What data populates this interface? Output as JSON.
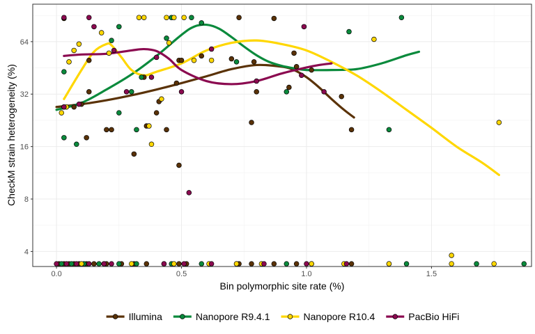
{
  "chart_data": {
    "type": "scatter",
    "xlabel": "Bin polymorphic site rate (%)",
    "ylabel": "CheckM strain heterogeneity (%)",
    "x_scale": "linear",
    "y_scale": "log2",
    "xlim": [
      -0.095,
      1.9
    ],
    "ylim": [
      3.28,
      105
    ],
    "x_ticks": [
      0.0,
      0.5,
      1.0,
      1.5
    ],
    "x_tick_labels": [
      "0.0",
      "0.5",
      "1.0",
      "1.5"
    ],
    "y_ticks": [
      4,
      8,
      16,
      32,
      64
    ],
    "y_tick_labels": [
      "4",
      "8",
      "16",
      "32",
      "64"
    ],
    "grid": true,
    "legend_position": "bottom",
    "series": [
      {
        "name": "Illumina",
        "color": "#5a3207",
        "points": [
          [
            0.03,
            87
          ],
          [
            0.13,
            50
          ],
          [
            0.07,
            27
          ],
          [
            0.03,
            27
          ],
          [
            0.1,
            28
          ],
          [
            0.12,
            18
          ],
          [
            0.13,
            33
          ],
          [
            0.2,
            20
          ],
          [
            0.22,
            20
          ],
          [
            0.31,
            14.5
          ],
          [
            0.35,
            40
          ],
          [
            0.36,
            21
          ],
          [
            0.4,
            25
          ],
          [
            0.41,
            29
          ],
          [
            0.44,
            20
          ],
          [
            0.48,
            37
          ],
          [
            0.49,
            50
          ],
          [
            0.5,
            50
          ],
          [
            0.49,
            12.5
          ],
          [
            0.58,
            53
          ],
          [
            0.7,
            51
          ],
          [
            0.73,
            88
          ],
          [
            0.78,
            22
          ],
          [
            0.79,
            49
          ],
          [
            0.8,
            33
          ],
          [
            0.87,
            87
          ],
          [
            0.93,
            35
          ],
          [
            0.95,
            55
          ],
          [
            0.96,
            46
          ],
          [
            1.02,
            44
          ],
          [
            1.14,
            31
          ],
          [
            1.18,
            20
          ],
          [
            0.01,
            3.4
          ],
          [
            0.03,
            3.4
          ],
          [
            0.05,
            3.4
          ],
          [
            0.07,
            3.4
          ],
          [
            0.09,
            3.4
          ],
          [
            0.12,
            3.4
          ],
          [
            0.15,
            3.4
          ],
          [
            0.2,
            3.4
          ],
          [
            0.26,
            3.4
          ],
          [
            0.31,
            3.4
          ],
          [
            0.36,
            3.4
          ],
          [
            0.43,
            3.4
          ],
          [
            0.49,
            3.4
          ],
          [
            0.52,
            3.4
          ],
          [
            0.73,
            3.4
          ],
          [
            0.78,
            3.4
          ],
          [
            0.87,
            3.4
          ],
          [
            0.96,
            3.4
          ],
          [
            1.18,
            3.4
          ]
        ],
        "trend": [
          [
            0.0,
            27
          ],
          [
            0.1,
            28
          ],
          [
            0.2,
            29.5
          ],
          [
            0.3,
            31.5
          ],
          [
            0.4,
            34
          ],
          [
            0.5,
            37
          ],
          [
            0.6,
            40.5
          ],
          [
            0.7,
            44.5
          ],
          [
            0.8,
            47
          ],
          [
            0.9,
            46
          ],
          [
            0.95,
            44
          ],
          [
            1.0,
            40
          ],
          [
            1.05,
            35
          ],
          [
            1.1,
            30
          ],
          [
            1.15,
            26
          ],
          [
            1.19,
            23.5
          ]
        ]
      },
      {
        "name": "Nanopore R9.4.1",
        "color": "#0a8a3c",
        "points": [
          [
            0.03,
            43
          ],
          [
            0.03,
            18
          ],
          [
            0.08,
            16.5
          ],
          [
            0.22,
            65
          ],
          [
            0.25,
            78
          ],
          [
            0.25,
            25
          ],
          [
            0.3,
            33
          ],
          [
            0.32,
            20
          ],
          [
            0.34,
            40
          ],
          [
            0.44,
            67
          ],
          [
            0.46,
            88
          ],
          [
            0.54,
            88
          ],
          [
            0.58,
            82
          ],
          [
            0.72,
            49
          ],
          [
            0.92,
            33
          ],
          [
            1.17,
            73
          ],
          [
            1.33,
            20
          ],
          [
            1.38,
            88
          ],
          [
            0.02,
            3.4
          ],
          [
            0.06,
            3.4
          ],
          [
            0.11,
            3.4
          ],
          [
            0.17,
            3.4
          ],
          [
            0.25,
            3.4
          ],
          [
            0.32,
            3.4
          ],
          [
            0.46,
            3.4
          ],
          [
            0.58,
            3.4
          ],
          [
            0.72,
            3.4
          ],
          [
            0.92,
            3.4
          ],
          [
            1.02,
            3.4
          ],
          [
            1.33,
            3.4
          ],
          [
            1.4,
            3.4
          ],
          [
            1.68,
            3.4
          ],
          [
            1.87,
            3.4
          ]
        ],
        "trend": [
          [
            0.0,
            26
          ],
          [
            0.1,
            28.5
          ],
          [
            0.2,
            34
          ],
          [
            0.3,
            41.5
          ],
          [
            0.4,
            53
          ],
          [
            0.5,
            70
          ],
          [
            0.55,
            78
          ],
          [
            0.6,
            80
          ],
          [
            0.65,
            76
          ],
          [
            0.7,
            68
          ],
          [
            0.75,
            60
          ],
          [
            0.8,
            53.5
          ],
          [
            0.85,
            49
          ],
          [
            0.9,
            46.5
          ],
          [
            0.95,
            45
          ],
          [
            1.0,
            44
          ],
          [
            1.1,
            44
          ],
          [
            1.2,
            44.5
          ],
          [
            1.3,
            48
          ],
          [
            1.4,
            53.5
          ],
          [
            1.45,
            56
          ]
        ]
      },
      {
        "name": "Nanopore R10.4",
        "color": "#ffd700",
        "points": [
          [
            0.02,
            25
          ],
          [
            0.03,
            27
          ],
          [
            0.04,
            27
          ],
          [
            0.05,
            49
          ],
          [
            0.07,
            57
          ],
          [
            0.09,
            62
          ],
          [
            0.18,
            72
          ],
          [
            0.21,
            55
          ],
          [
            0.33,
            88
          ],
          [
            0.35,
            88
          ],
          [
            0.37,
            21
          ],
          [
            0.38,
            16.5
          ],
          [
            0.42,
            30
          ],
          [
            0.44,
            88
          ],
          [
            0.45,
            63
          ],
          [
            0.47,
            88
          ],
          [
            0.51,
            88
          ],
          [
            0.55,
            50
          ],
          [
            0.62,
            50
          ],
          [
            1.27,
            66
          ],
          [
            1.58,
            3.8
          ],
          [
            1.77,
            22
          ],
          [
            0.1,
            3.4
          ],
          [
            0.19,
            3.4
          ],
          [
            0.3,
            3.4
          ],
          [
            0.47,
            3.4
          ],
          [
            0.61,
            3.4
          ],
          [
            0.72,
            3.4
          ],
          [
            0.82,
            3.4
          ],
          [
            1.02,
            3.4
          ],
          [
            1.15,
            3.4
          ],
          [
            1.33,
            3.4
          ],
          [
            1.58,
            3.4
          ],
          [
            1.75,
            3.4
          ]
        ],
        "trend": [
          [
            0.03,
            30
          ],
          [
            0.1,
            44
          ],
          [
            0.15,
            56
          ],
          [
            0.2,
            62
          ],
          [
            0.22,
            61
          ],
          [
            0.26,
            52
          ],
          [
            0.3,
            44
          ],
          [
            0.35,
            41
          ],
          [
            0.4,
            43
          ],
          [
            0.5,
            48
          ],
          [
            0.6,
            57
          ],
          [
            0.7,
            63
          ],
          [
            0.8,
            65
          ],
          [
            0.9,
            62
          ],
          [
            1.0,
            57
          ],
          [
            1.1,
            49
          ],
          [
            1.2,
            41
          ],
          [
            1.3,
            33
          ],
          [
            1.4,
            26
          ],
          [
            1.5,
            20.5
          ],
          [
            1.6,
            16
          ],
          [
            1.7,
            13
          ],
          [
            1.77,
            11
          ]
        ]
      },
      {
        "name": "PacBio HiFi",
        "color": "#8b0a50",
        "points": [
          [
            0.03,
            88
          ],
          [
            0.13,
            88
          ],
          [
            0.15,
            78
          ],
          [
            0.23,
            57
          ],
          [
            0.28,
            33
          ],
          [
            0.38,
            40
          ],
          [
            0.4,
            52
          ],
          [
            0.5,
            33
          ],
          [
            0.53,
            8.7
          ],
          [
            0.62,
            58
          ],
          [
            0.8,
            38
          ],
          [
            0.98,
            41
          ],
          [
            0.99,
            78
          ],
          [
            1.07,
            33
          ],
          [
            0.03,
            27
          ],
          [
            0.09,
            28
          ],
          [
            0.0,
            3.4
          ],
          [
            0.04,
            3.4
          ],
          [
            0.08,
            3.4
          ],
          [
            0.13,
            3.4
          ],
          [
            0.19,
            3.4
          ],
          [
            0.22,
            3.4
          ],
          [
            0.43,
            3.4
          ],
          [
            0.51,
            3.4
          ],
          [
            0.62,
            3.4
          ],
          [
            0.83,
            3.4
          ],
          [
            1.0,
            3.4
          ],
          [
            1.16,
            3.4
          ]
        ],
        "trend": [
          [
            0.03,
            53
          ],
          [
            0.1,
            54
          ],
          [
            0.2,
            54.5
          ],
          [
            0.3,
            57
          ],
          [
            0.35,
            58
          ],
          [
            0.4,
            56.5
          ],
          [
            0.45,
            51
          ],
          [
            0.5,
            44
          ],
          [
            0.6,
            38
          ],
          [
            0.7,
            36.5
          ],
          [
            0.8,
            38
          ],
          [
            0.9,
            42
          ],
          [
            1.0,
            45.5
          ],
          [
            1.05,
            47
          ],
          [
            1.1,
            48
          ]
        ]
      }
    ]
  }
}
